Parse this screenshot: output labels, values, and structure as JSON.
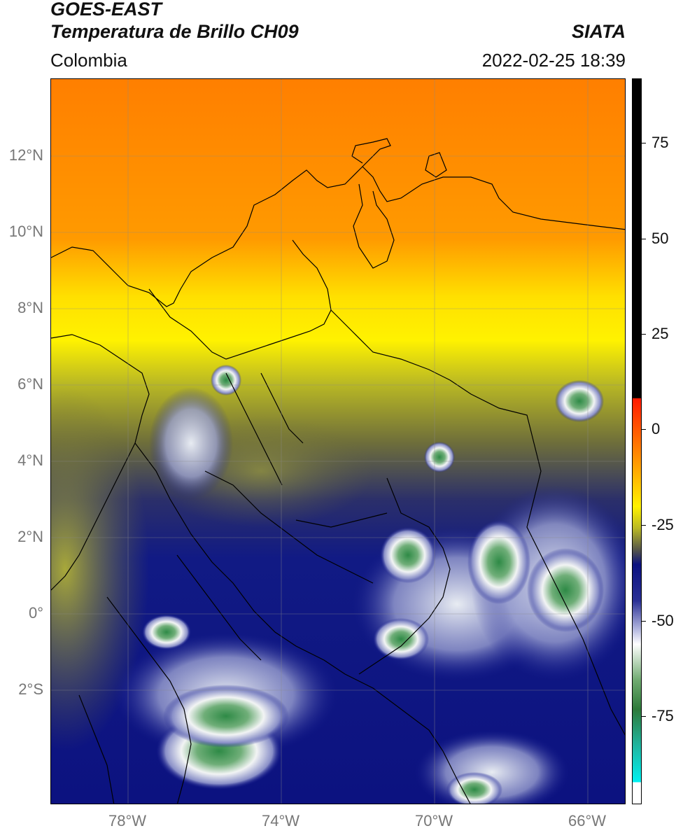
{
  "header": {
    "satellite": "GOES-EAST",
    "product": "Temperatura de Brillo CH09",
    "agency": "SIATA",
    "region": "Colombia",
    "timestamp": "2022-02-25 18:39"
  },
  "map": {
    "lat_labels": [
      {
        "text": "12°N",
        "lat": 12
      },
      {
        "text": "10°N",
        "lat": 10
      },
      {
        "text": "8°N",
        "lat": 8
      },
      {
        "text": "6°N",
        "lat": 6
      },
      {
        "text": "4°N",
        "lat": 4
      },
      {
        "text": "2°N",
        "lat": 2
      },
      {
        "text": "0°",
        "lat": 0
      },
      {
        "text": "2°S",
        "lat": -2
      }
    ],
    "lon_labels": [
      {
        "text": "78°W",
        "lon": -78
      },
      {
        "text": "74°W",
        "lon": -74
      },
      {
        "text": "70°W",
        "lon": -70
      },
      {
        "text": "66°W",
        "lon": -66
      }
    ],
    "lon_range": [
      -80,
      -65
    ],
    "lat_range": [
      -5,
      14
    ],
    "colors": {
      "warm_orange": "#ff8c00",
      "yellow": "#ffee00",
      "olive": "#8a8a20",
      "navy": "#0c1280",
      "white": "#ffffff",
      "green": "#3a8a3a"
    }
  },
  "colorbar": {
    "ticks": [
      {
        "text": "75",
        "value": 75
      },
      {
        "text": "50",
        "value": 50
      },
      {
        "text": "25",
        "value": 25
      },
      {
        "text": "0",
        "value": 0
      },
      {
        "text": "-25",
        "value": -25
      },
      {
        "text": "-50",
        "value": -50
      },
      {
        "text": "-75",
        "value": -75
      }
    ],
    "range": [
      -100,
      90
    ]
  }
}
